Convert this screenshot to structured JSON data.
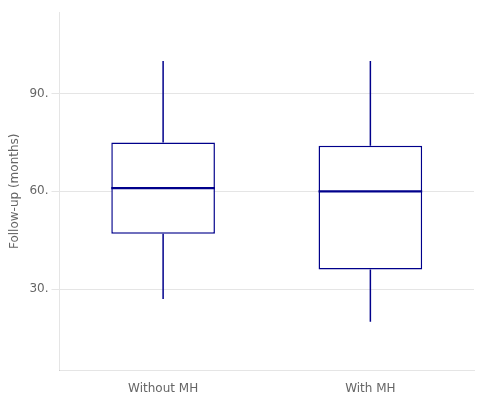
{
  "chart_data": {
    "type": "box",
    "categories": [
      "Without MH",
      "With MH"
    ],
    "boxes": [
      {
        "whisker_low": 27,
        "q1": 47,
        "median": 61,
        "q3": 75,
        "whisker_high": 100
      },
      {
        "whisker_low": 20,
        "q1": 36,
        "median": 60,
        "q3": 74,
        "whisker_high": 100
      }
    ],
    "color": "#00008B",
    "ylabel": "Follow-up (months)",
    "ylim": [
      5,
      115
    ],
    "yticks": [
      {
        "value": 30,
        "label": "30."
      },
      {
        "value": 60,
        "label": "60."
      },
      {
        "value": 90,
        "label": "90."
      }
    ],
    "grid": true
  }
}
